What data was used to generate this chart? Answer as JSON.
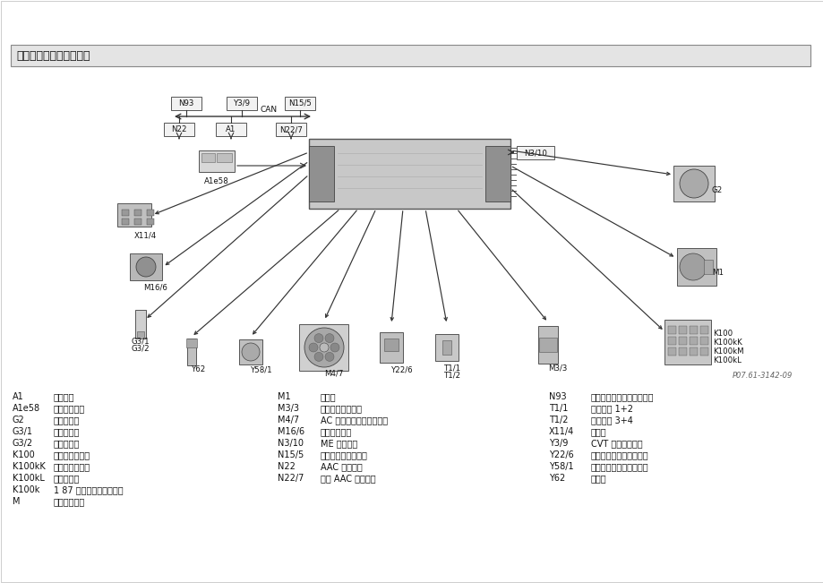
{
  "title": "发动机控制单元输出信号",
  "background_color": "#ffffff",
  "page_ref": "P07.61-3142-09",
  "figure_width": 9.2,
  "figure_height": 6.51,
  "legend_col1": [
    [
      "A1",
      "组合仪表"
    ],
    [
      "A1e58",
      "发动机故障灯"
    ],
    [
      "G2",
      "交流发电机"
    ],
    [
      "G3/1",
      "后氧传感器"
    ],
    [
      "G3/2",
      "前氧传感器"
    ],
    [
      "K100",
      "保险和继电器盒"
    ],
    [
      "K100kK",
      "保险和继电器盒"
    ],
    [
      "K100kL",
      "油泵继电器"
    ],
    [
      "K100k",
      "1 87 端点继电器，发动机"
    ],
    [
      "M",
      "起动机继电器"
    ]
  ],
  "legend_col2": [
    [
      "M1",
      "起动机"
    ],
    [
      "M3/3",
      "油泵及油位传感器"
    ],
    [
      "M4/7",
      "AC 及发动机散热风扇总成"
    ],
    [
      "M16/6",
      "节气门体总成"
    ],
    [
      "N3/10",
      "ME 控制单元"
    ],
    [
      "N15/5",
      "电子选择杆控制模块"
    ],
    [
      "N22",
      "AAC 控制模块"
    ],
    [
      "N22/7",
      "舒适 AAC 控制模块"
    ]
  ],
  "legend_col3": [
    [
      "N93",
      "中央控制模块（中央网关）"
    ],
    [
      "T1/1",
      "点火线圈 1+2"
    ],
    [
      "T1/2",
      "点火线圈 3+4"
    ],
    [
      "X11/4",
      "诊断座"
    ],
    [
      "Y3/9",
      "CVT 电子控制模块"
    ],
    [
      "Y22/6",
      "可变进气控制阀吉清理阀"
    ],
    [
      "Y58/1",
      "可变进气控制阀吉清理阀"
    ],
    [
      "Y62",
      "喷油嘴"
    ]
  ]
}
